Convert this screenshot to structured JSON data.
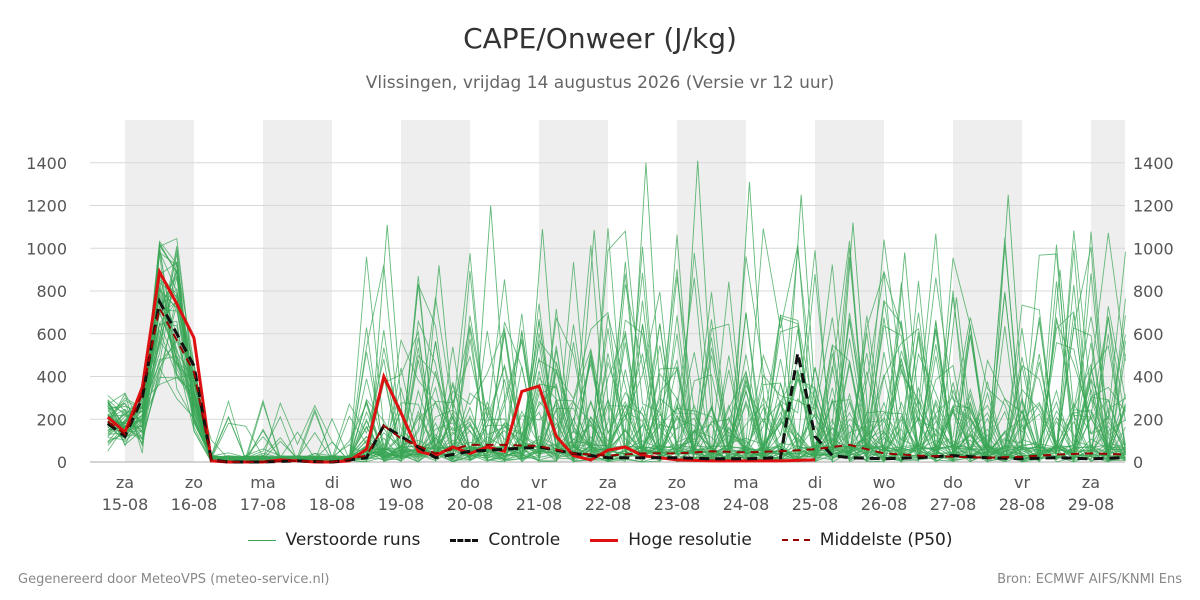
{
  "header": {
    "title": "CAPE/Onweer (J/kg)",
    "subtitle": "Vlissingen, vrijdag 14 augustus 2026 (Versie vr 12 uur)"
  },
  "footer": {
    "left": "Gegenereerd door MeteoVPS (meteo-service.nl)",
    "right": "Bron: ECMWF AIFS/KNMI Ens"
  },
  "legend": [
    {
      "label": "Verstoorde runs",
      "color": "#3aa655",
      "style": "thin"
    },
    {
      "label": "Controle",
      "color": "#111111",
      "style": "dashed"
    },
    {
      "label": "Hoge resolutie",
      "color": "#dd1111",
      "style": "thick"
    },
    {
      "label": "Middelste (P50)",
      "color": "#990000",
      "style": "dashed"
    }
  ],
  "chart_data": {
    "type": "line",
    "title": "CAPE/Onweer (J/kg)",
    "y_ticks": [
      "0",
      "200",
      "400",
      "600",
      "800",
      "1000",
      "1200",
      "1400"
    ],
    "ylim": [
      0,
      1600
    ],
    "x_range_days": [
      0,
      14.5
    ],
    "x_ticks": [
      {
        "day": "za",
        "date": "15-08"
      },
      {
        "day": "zo",
        "date": "16-08"
      },
      {
        "day": "ma",
        "date": "17-08"
      },
      {
        "day": "di",
        "date": "18-08"
      },
      {
        "day": "wo",
        "date": "19-08"
      },
      {
        "day": "do",
        "date": "20-08"
      },
      {
        "day": "vr",
        "date": "21-08"
      },
      {
        "day": "za",
        "date": "22-08"
      },
      {
        "day": "zo",
        "date": "23-08"
      },
      {
        "day": "ma",
        "date": "24-08"
      },
      {
        "day": "di",
        "date": "25-08"
      },
      {
        "day": "wo",
        "date": "26-08"
      },
      {
        "day": "do",
        "date": "27-08"
      },
      {
        "day": "vr",
        "date": "28-08"
      },
      {
        "day": "za",
        "date": "29-08"
      }
    ],
    "shaded_days": [
      0,
      2,
      4,
      6,
      8,
      10,
      12,
      14
    ],
    "grid": true,
    "legend_position": "bottom",
    "series": [
      {
        "name": "Hoge resolutie",
        "color": "#dd1111",
        "points": [
          [
            -0.25,
            210
          ],
          [
            0,
            140
          ],
          [
            0.25,
            350
          ],
          [
            0.5,
            890
          ],
          [
            0.75,
            740
          ],
          [
            1,
            580
          ],
          [
            1.25,
            5
          ],
          [
            1.5,
            0
          ],
          [
            1.75,
            0
          ],
          [
            2,
            0
          ],
          [
            2.25,
            10
          ],
          [
            2.5,
            5
          ],
          [
            2.75,
            0
          ],
          [
            3,
            0
          ],
          [
            3.25,
            5
          ],
          [
            3.5,
            60
          ],
          [
            3.75,
            400
          ],
          [
            4,
            230
          ],
          [
            4.25,
            50
          ],
          [
            4.5,
            30
          ],
          [
            4.75,
            70
          ],
          [
            5,
            40
          ],
          [
            5.25,
            70
          ],
          [
            5.5,
            50
          ],
          [
            5.75,
            330
          ],
          [
            6,
            355
          ],
          [
            6.25,
            120
          ],
          [
            6.5,
            30
          ],
          [
            6.75,
            10
          ],
          [
            7,
            55
          ],
          [
            7.25,
            70
          ],
          [
            7.5,
            30
          ],
          [
            7.75,
            20
          ],
          [
            8,
            10
          ],
          [
            8.5,
            5
          ],
          [
            9,
            5
          ],
          [
            9.5,
            5
          ],
          [
            10,
            10
          ]
        ]
      },
      {
        "name": "Controle",
        "color": "#111111",
        "points": [
          [
            -0.25,
            180
          ],
          [
            0,
            120
          ],
          [
            0.25,
            300
          ],
          [
            0.5,
            750
          ],
          [
            0.75,
            600
          ],
          [
            1,
            450
          ],
          [
            1.25,
            10
          ],
          [
            1.5,
            0
          ],
          [
            2,
            0
          ],
          [
            2.5,
            5
          ],
          [
            3,
            0
          ],
          [
            3.5,
            20
          ],
          [
            3.75,
            170
          ],
          [
            4,
            120
          ],
          [
            4.5,
            20
          ],
          [
            5,
            50
          ],
          [
            5.5,
            60
          ],
          [
            6,
            70
          ],
          [
            6.5,
            40
          ],
          [
            7,
            20
          ],
          [
            7.5,
            20
          ],
          [
            8,
            20
          ],
          [
            8.5,
            15
          ],
          [
            9,
            15
          ],
          [
            9.5,
            20
          ],
          [
            9.75,
            60
          ],
          [
            10,
            120
          ],
          [
            10.25,
            30
          ],
          [
            10.5,
            20
          ],
          [
            11,
            15
          ],
          [
            11.5,
            20
          ],
          [
            12,
            30
          ],
          [
            12.5,
            20
          ],
          [
            13,
            15
          ],
          [
            13.5,
            20
          ],
          [
            14,
            15
          ],
          [
            14.5,
            20
          ]
        ],
        "spike": {
          "at_day": 9.75,
          "value": 510
        }
      },
      {
        "name": "Middelste (P50)",
        "color": "#990000",
        "points": [
          [
            -0.25,
            190
          ],
          [
            0,
            130
          ],
          [
            0.25,
            320
          ],
          [
            0.5,
            720
          ],
          [
            0.75,
            570
          ],
          [
            1,
            420
          ],
          [
            1.25,
            8
          ],
          [
            1.5,
            0
          ],
          [
            2,
            0
          ],
          [
            2.5,
            5
          ],
          [
            3,
            0
          ],
          [
            3.5,
            30
          ],
          [
            3.75,
            170
          ],
          [
            4,
            110
          ],
          [
            4.5,
            40
          ],
          [
            5,
            80
          ],
          [
            5.5,
            80
          ],
          [
            6,
            75
          ],
          [
            6.5,
            40
          ],
          [
            7,
            30
          ],
          [
            7.5,
            40
          ],
          [
            8,
            40
          ],
          [
            8.5,
            50
          ],
          [
            9,
            45
          ],
          [
            9.5,
            50
          ],
          [
            10,
            60
          ],
          [
            10.5,
            80
          ],
          [
            11,
            40
          ],
          [
            11.5,
            30
          ],
          [
            12,
            25
          ],
          [
            12.5,
            20
          ],
          [
            13,
            25
          ],
          [
            13.5,
            35
          ],
          [
            14,
            40
          ],
          [
            14.5,
            35
          ]
        ]
      }
    ],
    "ensemble": {
      "name": "Verstoorde runs",
      "color": "#3aa655",
      "members": 50,
      "peak_values": [
        1110,
        920,
        1200,
        1090,
        1085,
        1400,
        1410,
        1310,
        1250,
        1120,
        980,
        770,
        1250,
        900
      ]
    }
  }
}
